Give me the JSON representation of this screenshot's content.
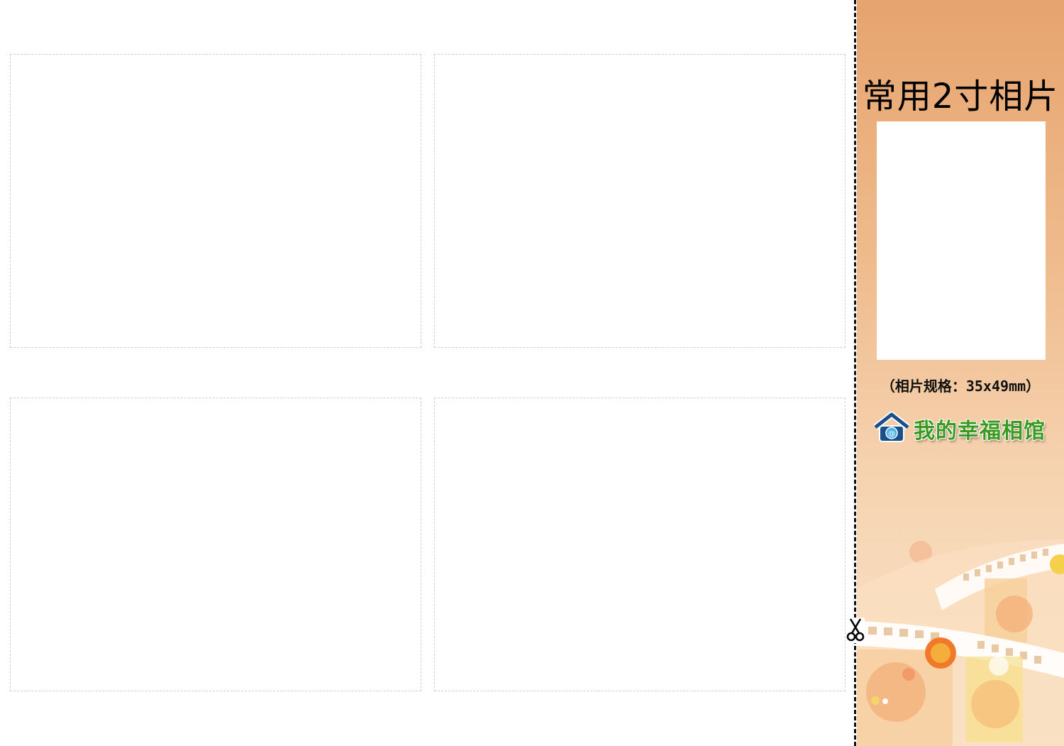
{
  "side_panel": {
    "title": "常用2寸相片",
    "spec": "（相片规格：35x49mm）",
    "logo_text": "我的幸福相馆"
  },
  "photo_slots": [
    {
      "label": ""
    },
    {
      "label": ""
    },
    {
      "label": ""
    },
    {
      "label": ""
    }
  ],
  "colors": {
    "panel_top": "#e6a46f",
    "panel_bottom": "#f9e3c7",
    "logo_green": "#3a9a1e",
    "logo_house_blue": "#1a4f8a",
    "cut_line": "#111111",
    "slot_border": "#cfcfcf"
  },
  "icons": {
    "cut_marker": "scissors-icon",
    "logo": "house-icon"
  }
}
